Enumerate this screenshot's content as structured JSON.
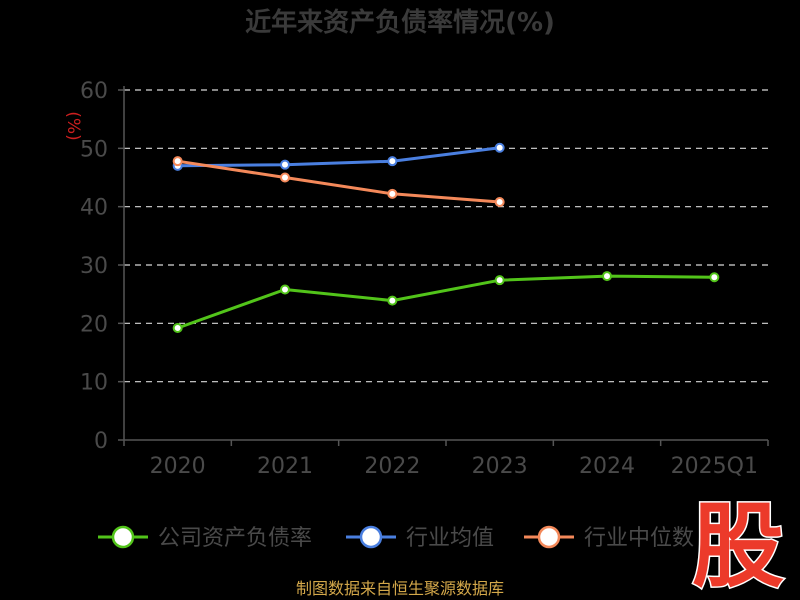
{
  "chart_data": {
    "type": "line",
    "title": "近年来资产负债率情况(%)",
    "ylabel": "(%)",
    "categories": [
      "2020",
      "2021",
      "2022",
      "2023",
      "2024",
      "2025Q1"
    ],
    "ylim": [
      0,
      60
    ],
    "yticks": [
      0,
      10,
      20,
      30,
      40,
      50,
      60
    ],
    "grid": true,
    "legend_position": "bottom",
    "series": [
      {
        "name": "公司资产负债率",
        "color": "#52c41a",
        "values": [
          19.2,
          25.8,
          23.9,
          27.4,
          28.1,
          27.9
        ]
      },
      {
        "name": "行业均值",
        "color": "#4a7fe0",
        "values": [
          47.0,
          47.2,
          47.8,
          50.1,
          null,
          null
        ]
      },
      {
        "name": "行业中位数",
        "color": "#f4895a",
        "values": [
          47.8,
          45.0,
          42.2,
          40.8,
          null,
          null
        ]
      }
    ]
  },
  "watermark": "股",
  "source_text": "制图数据来自恒生聚源数据库"
}
